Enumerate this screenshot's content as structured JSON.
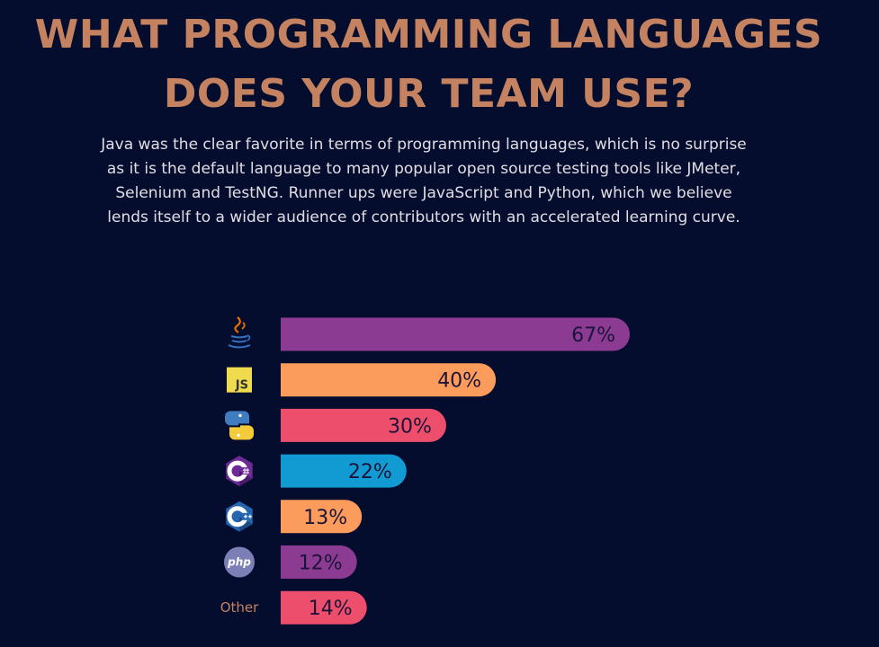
{
  "header": {
    "title_line1": "WHAT PROGRAMMING LANGUAGES",
    "title_line2": "DOES YOUR TEAM USE?"
  },
  "intro_text": "Java was the clear favorite in terms of programming languages, which is no surprise as it is the default language to many popular open source testing tools like JMeter, Selenium and TestNG. Runner ups were JavaScript and Python, which we believe lends itself to a wider audience of contributors with an accelerated learning curve.",
  "colors": {
    "background": "#050d2e",
    "title": "#c48260",
    "label_text": "#1c1438"
  },
  "chart_data": {
    "type": "bar",
    "orientation": "horizontal",
    "categories": [
      "Java",
      "JavaScript",
      "Python",
      "C#",
      "C++",
      "PHP",
      "Other"
    ],
    "category_labels": [
      "",
      "JS",
      "",
      "",
      "",
      "php",
      "Other"
    ],
    "icons": [
      "java-icon",
      "javascript-icon",
      "python-icon",
      "csharp-icon",
      "cplusplus-icon",
      "php-icon",
      "none"
    ],
    "values": [
      67,
      40,
      30,
      22,
      13,
      12,
      14
    ],
    "value_labels": [
      "67%",
      "40%",
      "30%",
      "22%",
      "13%",
      "12%",
      "14%"
    ],
    "bar_colors": [
      "#8c3b93",
      "#fb9b5c",
      "#ec4e6c",
      "#129bd3",
      "#fb9b5c",
      "#8c3b93",
      "#ec4e6c"
    ],
    "unit": "%",
    "title": "",
    "xlabel": "",
    "ylabel": "",
    "grid": false,
    "legend": "none"
  }
}
